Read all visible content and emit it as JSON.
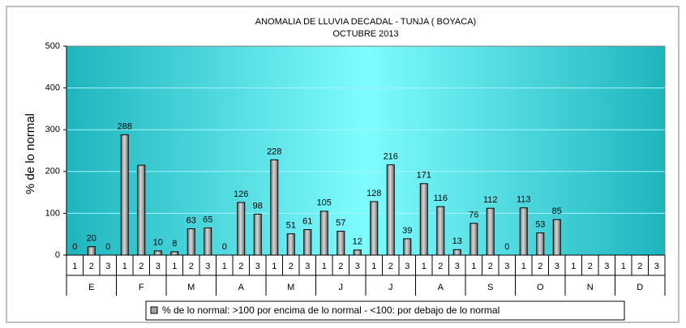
{
  "chart_data": {
    "type": "bar",
    "title": "ANOMALIA DE LLUVIA DECADAL - TUNJA  ( BOYACA)",
    "subtitle": "OCTUBRE 2013",
    "y_label": "% de lo normal",
    "categories": [
      "1",
      "2",
      "3",
      "1",
      "2",
      "3",
      "1",
      "2",
      "3",
      "1",
      "2",
      "3",
      "1",
      "2",
      "3",
      "1",
      "2",
      "3",
      "1",
      "2",
      "3",
      "1",
      "2",
      "3",
      "1",
      "2",
      "3",
      "1",
      "2",
      "3",
      "1",
      "2",
      "3",
      "1",
      "2",
      "3"
    ],
    "groups": [
      "E",
      "F",
      "M",
      "A",
      "M",
      "J",
      "J",
      "A",
      "S",
      "O",
      "N",
      "D"
    ],
    "series": [
      {
        "name": "% de lo normal: >100 por encima de lo normal - <100: por debajo de lo normal",
        "color": "#a6a6a6",
        "values": [
          0,
          20,
          0,
          288,
          215,
          10,
          8,
          63,
          65,
          0,
          126,
          98,
          228,
          51,
          61,
          105,
          57,
          12,
          128,
          216,
          39,
          171,
          116,
          13,
          76,
          112,
          0,
          113,
          53,
          85,
          null,
          null,
          null,
          null,
          null,
          null
        ],
        "value_labels": [
          "0",
          "20",
          "0",
          "288",
          null,
          "10",
          "8",
          "63",
          "65",
          "0",
          "126",
          "98",
          "228",
          "51",
          "61",
          "105",
          "57",
          "12",
          "128",
          "216",
          "39",
          "171",
          "116",
          "13",
          "76",
          "112",
          "0",
          "113",
          "53",
          "85",
          null,
          null,
          null,
          null,
          null,
          null
        ]
      }
    ],
    "ylim": [
      0,
      500
    ],
    "yticks": [
      0,
      100,
      200,
      300,
      400,
      500
    ],
    "grid": true
  }
}
